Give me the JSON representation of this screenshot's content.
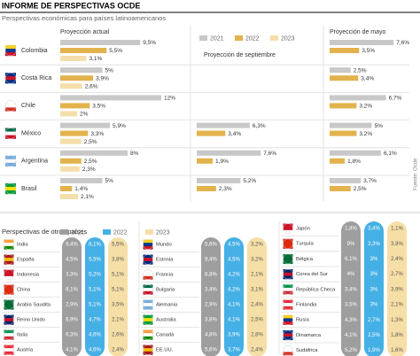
{
  "title": "INFORME DE PERSPECTIVAS OCDE",
  "subtitle": "Perspectivas económicas para países latinoamericanos",
  "source": "Fuente: Ocde",
  "chart_data": {
    "type": "bar",
    "orientation": "horizontal",
    "categories": [
      "Colombia",
      "Costa Rica",
      "Chile",
      "México",
      "Argentina",
      "Brasil"
    ],
    "series": [
      {
        "name": "2021",
        "color": "#c8c8c8"
      },
      {
        "name": "2022",
        "color": "#e2b24c"
      },
      {
        "name": "2023",
        "color": "#f4deaa"
      }
    ],
    "panels": [
      {
        "title": "Proyección actual",
        "series": [
          {
            "values": [
              9.5,
              5,
              12,
              5.9,
              8,
              5
            ],
            "value_labels": [
              "9,5%",
              "5%",
              "12%",
              "5,9%",
              "8%",
              "5%"
            ]
          },
          {
            "values": [
              5.5,
              3.9,
              3.5,
              3.3,
              2.5,
              1.4
            ],
            "value_labels": [
              "5,5%",
              "3,9%",
              "3,5%",
              "3,3%",
              "2,5%",
              "1,4%"
            ]
          },
          {
            "values": [
              3.1,
              2.6,
              2,
              2.5,
              2.3,
              2.1
            ],
            "value_labels": [
              "3,1%",
              "2,6%",
              "2%",
              "2,5%",
              "2,3%",
              "2,1%"
            ]
          }
        ]
      },
      {
        "title": "Proyección de septiembre",
        "series": [
          {
            "values": [
              null,
              null,
              null,
              6.3,
              7.6,
              5.2
            ],
            "value_labels": [
              null,
              null,
              null,
              "6,3%",
              "7,6%",
              "5,2%"
            ]
          },
          {
            "values": [
              null,
              null,
              null,
              3.4,
              1.9,
              2.3
            ],
            "value_labels": [
              null,
              null,
              null,
              "3,4%",
              "1,9%",
              "2,3%"
            ]
          }
        ]
      },
      {
        "title": "Proyección de mayo",
        "series": [
          {
            "values": [
              7.6,
              2.5,
              6.7,
              5,
              6.1,
              3.7
            ],
            "value_labels": [
              "7,6%",
              "2,5%",
              "6,7%",
              "5%",
              "6,1%",
              "3,7%"
            ]
          },
          {
            "values": [
              3.5,
              3.4,
              3.2,
              3.2,
              1.8,
              2.5
            ],
            "value_labels": [
              "3,5%",
              "3,4%",
              "3,2%",
              "3,2%",
              "1,8%",
              "2,5%"
            ]
          }
        ]
      }
    ]
  },
  "other_countries": {
    "title": "Perspectivas de otros países",
    "legend": [
      "2021",
      "2022",
      "2023"
    ],
    "colors": [
      "#9e9e9e",
      "#45b0e5",
      "#f6dfa6"
    ],
    "columns": [
      {
        "rows": [
          {
            "name": "India",
            "values": [
              "9,4%",
              "8,1%",
              "5,5%"
            ]
          },
          {
            "name": "España",
            "values": [
              "4,5%",
              "5,5%",
              "3,8%"
            ]
          },
          {
            "name": "Indonesia",
            "values": [
              "3,3%",
              "5,2%",
              "5,1%"
            ]
          },
          {
            "name": "China",
            "values": [
              "8,1%",
              "5,1%",
              "5,1%"
            ]
          },
          {
            "name": "Arabia Saudita",
            "values": [
              "2,9%",
              "5,1%",
              "3,5%"
            ]
          },
          {
            "name": "Reino Unido",
            "values": [
              "6,9%",
              "4,7%",
              "2,1%"
            ]
          },
          {
            "name": "Italia",
            "values": [
              "6,3%",
              "4,6%",
              "2,6%"
            ]
          },
          {
            "name": "Austria",
            "values": [
              "4,1%",
              "4,6%",
              "2,4%"
            ]
          }
        ]
      },
      {
        "rows": [
          {
            "name": "Mundo",
            "values": [
              "5,6%",
              "4,5%",
              "3,2%"
            ]
          },
          {
            "name": "Estonia",
            "values": [
              "9,4%",
              "4,5%",
              "3,2%"
            ]
          },
          {
            "name": "Francia",
            "values": [
              "6,8%",
              "4,2%",
              "2,1%"
            ]
          },
          {
            "name": "Bulgaria",
            "values": [
              "3,4%",
              "4,2%",
              "3,1%"
            ]
          },
          {
            "name": "Alemania",
            "values": [
              "2,9%",
              "4,1%",
              "2,4%"
            ]
          },
          {
            "name": "Australia",
            "values": [
              "3,8%",
              "4,1%",
              "2,5%"
            ]
          },
          {
            "name": "Canadá",
            "values": [
              "4,8%",
              "3,9%",
              "2,8%"
            ]
          },
          {
            "name": "EE.UU.",
            "values": [
              "5,6%",
              "3,7%",
              "2,4%"
            ]
          }
        ]
      },
      {
        "rows": [
          {
            "name": "Japón",
            "values": [
              "1,8%",
              "3,4%",
              "1,1%"
            ]
          },
          {
            "name": "Turquía",
            "values": [
              "9%",
              "3,3%",
              "3,9%"
            ]
          },
          {
            "name": "Bélgica",
            "values": [
              "6,1%",
              "3%",
              "2,4%"
            ]
          },
          {
            "name": "Corea del Sur",
            "values": [
              "4%",
              "3%",
              "2,7%"
            ]
          },
          {
            "name": "República Checa",
            "values": [
              "3,4%",
              "3%",
              "3,9%"
            ]
          },
          {
            "name": "Finlandia",
            "values": [
              "3,5%",
              "3%",
              "2,1%"
            ]
          },
          {
            "name": "Rusia",
            "values": [
              "4,3%",
              "2,7%",
              "1,3%"
            ]
          },
          {
            "name": "Dinamarca",
            "values": [
              "4,1%",
              "2,5%",
              "1,8%"
            ]
          },
          {
            "name": "Sudáfrica",
            "values": [
              "5,2%",
              "1,9%",
              "1,6%"
            ]
          }
        ]
      }
    ]
  }
}
